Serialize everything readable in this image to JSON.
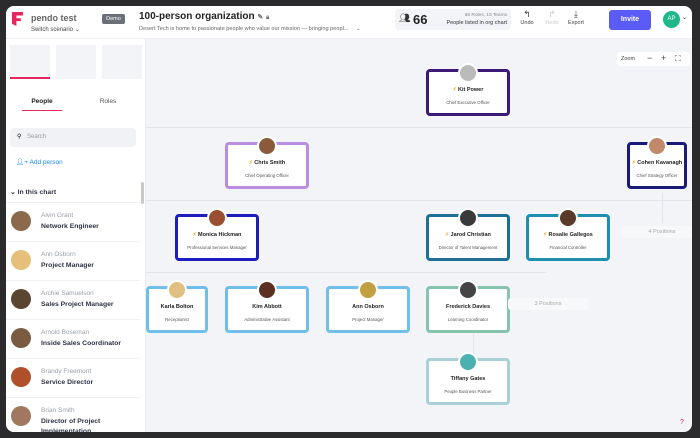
{
  "header": {
    "app_name": "pendo test",
    "switch_label": "Switch scenario",
    "badge": "Demo",
    "title": "100-person organization",
    "description": "Desert Tech is home to passionate people who value our mission — bringing peopl...",
    "count": "66",
    "count_label": "People listed in org chart",
    "count_sub": "66 Roles, 15 Teams",
    "undo": "Undo",
    "redo": "Redo",
    "export": "Export",
    "invite": "Invite",
    "avatar": "AP",
    "brand_color": "#e8265e",
    "accent": "#5b5bf5"
  },
  "sidebar": {
    "tabs": [
      {
        "label": "People",
        "active": true
      },
      {
        "label": "Roles",
        "active": false
      }
    ],
    "search_placeholder": "Search",
    "add_person": "Add person",
    "section": "In this chart",
    "people": [
      {
        "name": "Alvin Grant",
        "role": "Network Engineer"
      },
      {
        "name": "Ann Osborn",
        "role": "Project Manager"
      },
      {
        "name": "Archie Samuelson",
        "role": "Sales Project Manager"
      },
      {
        "name": "Arnold Boseman",
        "role": "Inside Sales Coordinator"
      },
      {
        "name": "Brandy Freemont",
        "role": "Service Director"
      },
      {
        "name": "Brian Smith",
        "role": "Director of Project Implementation"
      }
    ]
  },
  "canvas": {
    "zoom_label": "Zoom",
    "cards": [
      {
        "name": "Kit Power",
        "role": "Chief Executive Officer",
        "color": "#3d1a78",
        "lead": true
      },
      {
        "name": "Chris Smith",
        "role": "Chief Operating Officer",
        "color": "#b98ee0",
        "lead": true
      },
      {
        "name": "Cohen Kavanagh",
        "role": "Chief Strategy Officer",
        "color": "#1a1a7a",
        "lead": true
      },
      {
        "name": "Monica Hickman",
        "role": "Professional Services Manager",
        "color": "#1d1dbf",
        "lead": true
      },
      {
        "name": "Jarod Christian",
        "role": "Director of Talent Management",
        "color": "#1e6e96",
        "lead": true
      },
      {
        "name": "Rosalie Gallegos",
        "role": "Financial Controller",
        "color": "#1f8faf",
        "lead": true
      },
      {
        "name": "Karla Bolton",
        "role": "Receptionist",
        "color": "#6fbfea",
        "lead": false
      },
      {
        "name": "Kim Abbott",
        "role": "Administrative Assistant",
        "color": "#6fbfea",
        "lead": false
      },
      {
        "name": "Ann Osborn",
        "role": "Project Manager",
        "color": "#6fbfea",
        "lead": false
      },
      {
        "name": "Frederick Davies",
        "role": "Learning Coordinator",
        "color": "#86c4ae",
        "lead": false
      },
      {
        "name": "Tiffany Gates",
        "role": "People Business Partner",
        "color": "#a8d0d6",
        "lead": false
      }
    ],
    "positions": [
      "4 Positions",
      "3 Positions"
    ]
  }
}
